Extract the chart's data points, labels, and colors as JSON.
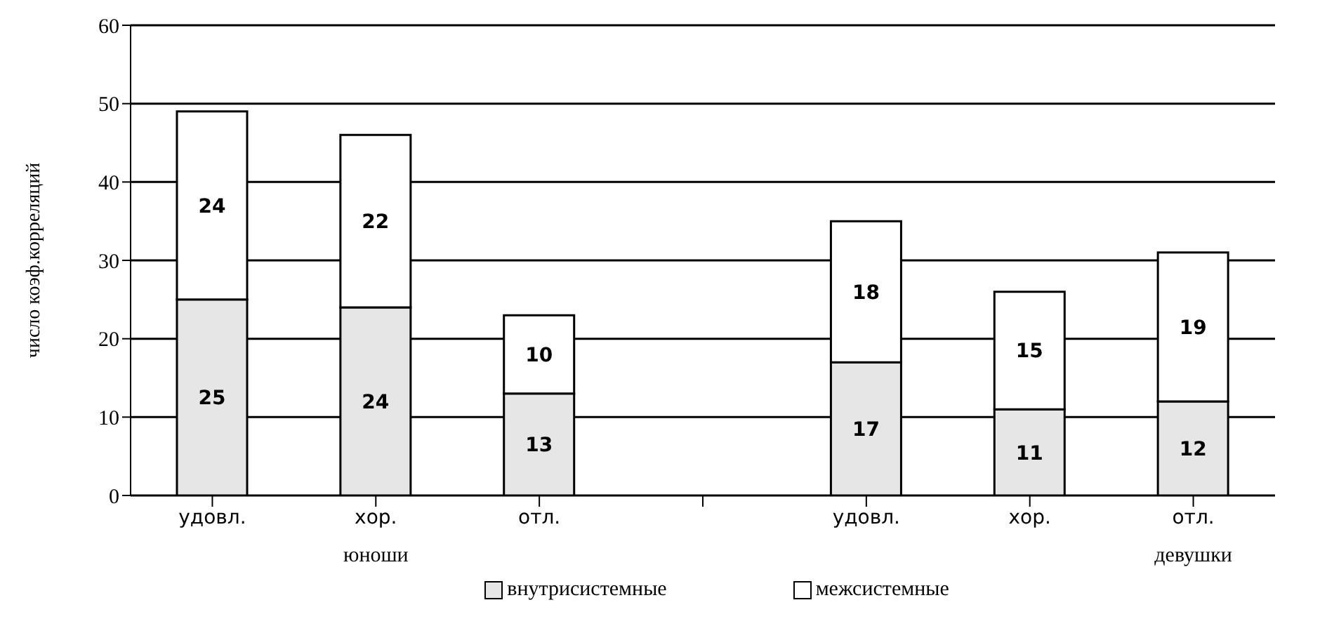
{
  "chart_data": {
    "type": "bar",
    "stacked": true,
    "ylabel": "число коэф.корреляций",
    "categories": [
      "удовл.",
      "хор.",
      "отл.",
      null,
      "удовл.",
      "хор.",
      "отл."
    ],
    "series": [
      {
        "name": "внутрисистемные",
        "color": "#e6e6e6",
        "values": [
          25,
          24,
          13,
          null,
          17,
          11,
          12
        ]
      },
      {
        "name": "межсистемные",
        "color": "#ffffff",
        "values": [
          24,
          22,
          10,
          null,
          18,
          15,
          19
        ]
      }
    ],
    "ylim": [
      0,
      60
    ],
    "yticks": [
      0,
      10,
      20,
      30,
      40,
      50,
      60
    ],
    "grid": "y",
    "legend": "bottom",
    "data_labels": true,
    "annotations": [
      "юноши",
      "девушки"
    ]
  }
}
